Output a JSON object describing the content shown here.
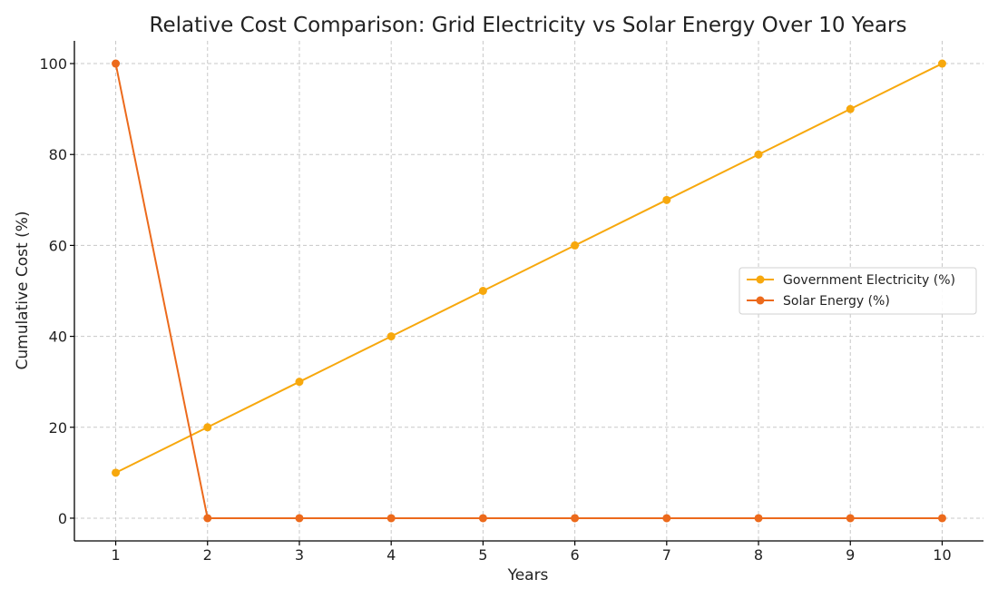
{
  "chart_data": {
    "type": "line",
    "title": "Relative Cost Comparison: Grid Electricity vs Solar Energy Over 10 Years",
    "xlabel": "Years",
    "ylabel": "Cumulative Cost (%)",
    "x": [
      1,
      2,
      3,
      4,
      5,
      6,
      7,
      8,
      9,
      10
    ],
    "xlim": [
      0.55,
      10.45
    ],
    "ylim": [
      -5,
      105
    ],
    "xticks": [
      1,
      2,
      3,
      4,
      5,
      6,
      7,
      8,
      9,
      10
    ],
    "yticks": [
      0,
      20,
      40,
      60,
      80,
      100
    ],
    "grid": true,
    "legend_position": "center-right",
    "series": [
      {
        "name": "Government Electricity (%)",
        "color": "#f7a80d",
        "values": [
          10,
          20,
          30,
          40,
          50,
          60,
          70,
          80,
          90,
          100
        ]
      },
      {
        "name": "Solar Energy (%)",
        "color": "#ec6a1c",
        "values": [
          100,
          0,
          0,
          0,
          0,
          0,
          0,
          0,
          0,
          0
        ]
      }
    ]
  }
}
